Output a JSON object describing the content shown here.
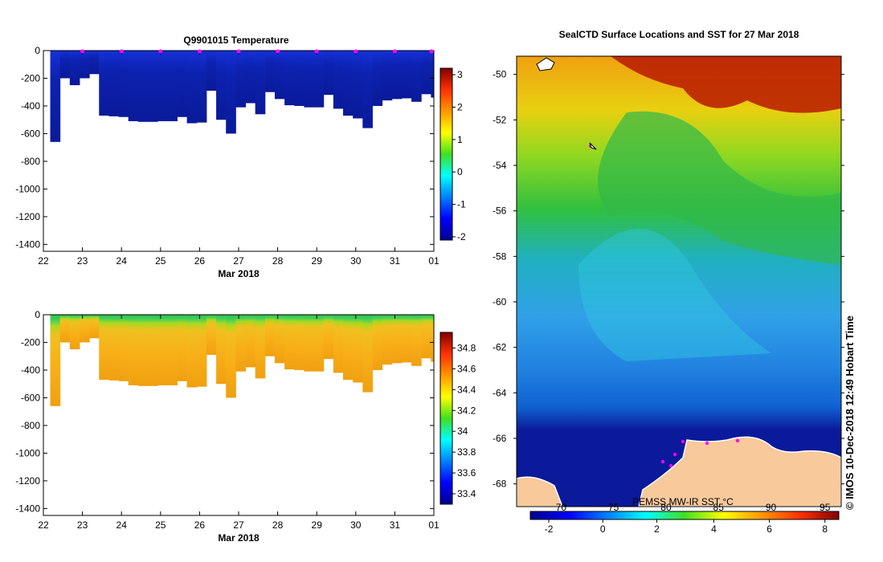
{
  "chart_data": [
    {
      "type": "heatmap",
      "title": "Q9901015  Temperature",
      "xlabel": "Mar 2018",
      "x_tick_labels": [
        "22",
        "23",
        "24",
        "25",
        "26",
        "27",
        "28",
        "29",
        "30",
        "31",
        "01"
      ],
      "xlim": [
        22,
        32
      ],
      "ylim": [
        -1450,
        0
      ],
      "y_ticks": [
        0,
        -200,
        -400,
        -600,
        -800,
        -1000,
        -1200,
        -1400
      ],
      "colorbar": {
        "min": -2.1,
        "max": 3.2,
        "ticks": [
          3,
          2,
          1,
          0,
          -1,
          -2
        ]
      },
      "profiles": {
        "day": [
          22.3,
          22.55,
          22.8,
          23.05,
          23.3,
          23.55,
          23.8,
          24.05,
          24.3,
          24.55,
          24.8,
          25.05,
          25.3,
          25.55,
          25.8,
          26.05,
          26.3,
          26.55,
          26.8,
          27.05,
          27.3,
          27.55,
          27.8,
          28.05,
          28.3,
          28.55,
          28.8,
          29.05,
          29.3,
          29.55,
          29.8,
          30.05,
          30.3,
          30.55,
          30.8,
          31.05,
          31.3,
          31.55,
          31.8,
          32.05
        ],
        "max_depth": [
          660,
          200,
          250,
          200,
          170,
          470,
          475,
          480,
          510,
          515,
          515,
          510,
          510,
          480,
          525,
          520,
          290,
          500,
          600,
          410,
          380,
          460,
          300,
          350,
          395,
          400,
          410,
          410,
          320,
          420,
          470,
          490,
          560,
          400,
          360,
          350,
          345,
          370,
          315,
          340
        ]
      },
      "surface_markers": [
        23,
        24,
        25,
        26,
        27,
        28,
        29,
        30,
        31,
        32
      ]
    },
    {
      "type": "heatmap",
      "title": "",
      "xlabel": "Mar 2018",
      "x_tick_labels": [
        "22",
        "23",
        "24",
        "25",
        "26",
        "27",
        "28",
        "29",
        "30",
        "31",
        "01"
      ],
      "xlim": [
        22,
        32
      ],
      "ylim": [
        -1450,
        0
      ],
      "y_ticks": [
        0,
        -200,
        -400,
        -600,
        -800,
        -1000,
        -1200,
        -1400
      ],
      "colorbar": {
        "min": 33.3,
        "max": 34.95,
        "ticks": [
          34.8,
          34.6,
          34.4,
          34.2,
          34,
          33.8,
          33.6,
          33.4
        ]
      }
    },
    {
      "type": "heatmap",
      "title": "SealCTD Surface Locations and SST for 27 Mar 2018",
      "latitude_range": [
        -69,
        -49.2
      ],
      "y_ticks": [
        -50,
        -52,
        -54,
        -56,
        -58,
        -60,
        -62,
        -64,
        -66,
        -68
      ],
      "colorbar": {
        "temperature_ticks": [
          "-2",
          "0",
          "2",
          "4",
          "6",
          "8"
        ],
        "overlay_ticks": [
          "70",
          "75",
          "80",
          "85",
          "90",
          "95"
        ],
        "caption": "PEMSS MW-IR SST °C"
      }
    }
  ],
  "footer_vertical": "©  IMOS 10-Dec-2018 12:49 Hobart Time",
  "colors": {
    "deep_blue": "#0a1a9a",
    "land": "#f7c99b",
    "marker": "#ff00ff"
  }
}
